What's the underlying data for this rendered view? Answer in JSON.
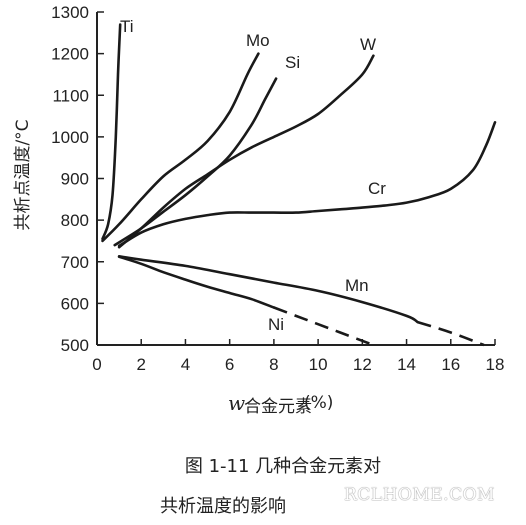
{
  "chart_data": {
    "type": "line",
    "title": "",
    "xlabel": "w",
    "xlabel_sub": "合金元素",
    "xlabel_unit": "(%)",
    "ylabel": "共析点温度/°C",
    "xlim": [
      0,
      18
    ],
    "ylim": [
      500,
      1300
    ],
    "x_ticks": [
      0,
      2,
      4,
      6,
      8,
      10,
      12,
      14,
      16,
      18
    ],
    "y_ticks": [
      500,
      600,
      700,
      800,
      900,
      1000,
      1100,
      1200,
      1300
    ],
    "grid": false,
    "series": [
      {
        "name": "Ti",
        "points": [
          [
            0.25,
            755
          ],
          [
            0.5,
            790
          ],
          [
            0.7,
            860
          ],
          [
            0.85,
            1000
          ],
          [
            0.95,
            1150
          ],
          [
            1.05,
            1270
          ]
        ],
        "dashed_from": null
      },
      {
        "name": "Mo",
        "points": [
          [
            0.25,
            750
          ],
          [
            1,
            790
          ],
          [
            2,
            850
          ],
          [
            3,
            905
          ],
          [
            4,
            945
          ],
          [
            5,
            990
          ],
          [
            6,
            1060
          ],
          [
            6.8,
            1150
          ],
          [
            7.3,
            1200
          ]
        ],
        "dashed_from": null
      },
      {
        "name": "Si",
        "points": [
          [
            0.8,
            740
          ],
          [
            2,
            780
          ],
          [
            3,
            820
          ],
          [
            4,
            860
          ],
          [
            5,
            905
          ],
          [
            6,
            955
          ],
          [
            7,
            1030
          ],
          [
            7.6,
            1090
          ],
          [
            8.1,
            1140
          ]
        ],
        "dashed_from": null
      },
      {
        "name": "W",
        "points": [
          [
            1,
            735
          ],
          [
            2,
            780
          ],
          [
            3,
            830
          ],
          [
            4,
            875
          ],
          [
            5,
            910
          ],
          [
            6,
            945
          ],
          [
            7,
            975
          ],
          [
            8,
            1000
          ],
          [
            9,
            1025
          ],
          [
            10,
            1055
          ],
          [
            11,
            1100
          ],
          [
            12,
            1150
          ],
          [
            12.5,
            1195
          ]
        ],
        "dashed_from": null
      },
      {
        "name": "Cr",
        "points": [
          [
            1,
            738
          ],
          [
            2,
            770
          ],
          [
            3,
            790
          ],
          [
            4,
            803
          ],
          [
            5,
            812
          ],
          [
            6,
            818
          ],
          [
            7,
            818
          ],
          [
            8,
            818
          ],
          [
            9,
            818
          ],
          [
            10,
            822
          ],
          [
            11,
            826
          ],
          [
            12,
            830
          ],
          [
            13,
            835
          ],
          [
            14,
            842
          ],
          [
            15,
            855
          ],
          [
            16,
            875
          ],
          [
            17,
            920
          ],
          [
            17.6,
            980
          ],
          [
            18,
            1035
          ]
        ],
        "dashed_from": null
      },
      {
        "name": "Mn",
        "points": [
          [
            1,
            713
          ],
          [
            2,
            705
          ],
          [
            4,
            690
          ],
          [
            6,
            670
          ],
          [
            8,
            650
          ],
          [
            10,
            630
          ],
          [
            12,
            603
          ],
          [
            14,
            570
          ],
          [
            14.5,
            555
          ],
          [
            16,
            530
          ],
          [
            17.5,
            500
          ]
        ],
        "dashed_from": 14.5
      },
      {
        "name": "Ni",
        "points": [
          [
            1,
            712
          ],
          [
            2,
            695
          ],
          [
            3,
            675
          ],
          [
            4,
            657
          ],
          [
            5,
            640
          ],
          [
            6,
            625
          ],
          [
            7,
            610
          ],
          [
            8,
            590
          ],
          [
            9,
            570
          ],
          [
            10,
            550
          ],
          [
            11,
            530
          ],
          [
            12,
            510
          ],
          [
            12.5,
            500
          ]
        ],
        "dashed_from": 8.1
      }
    ],
    "label_positions_note": ""
  },
  "caption": {
    "line1": "图 1-11    几种合金元素对",
    "line2": "共析温度的影响"
  },
  "watermark": "RCLHOME.COM"
}
